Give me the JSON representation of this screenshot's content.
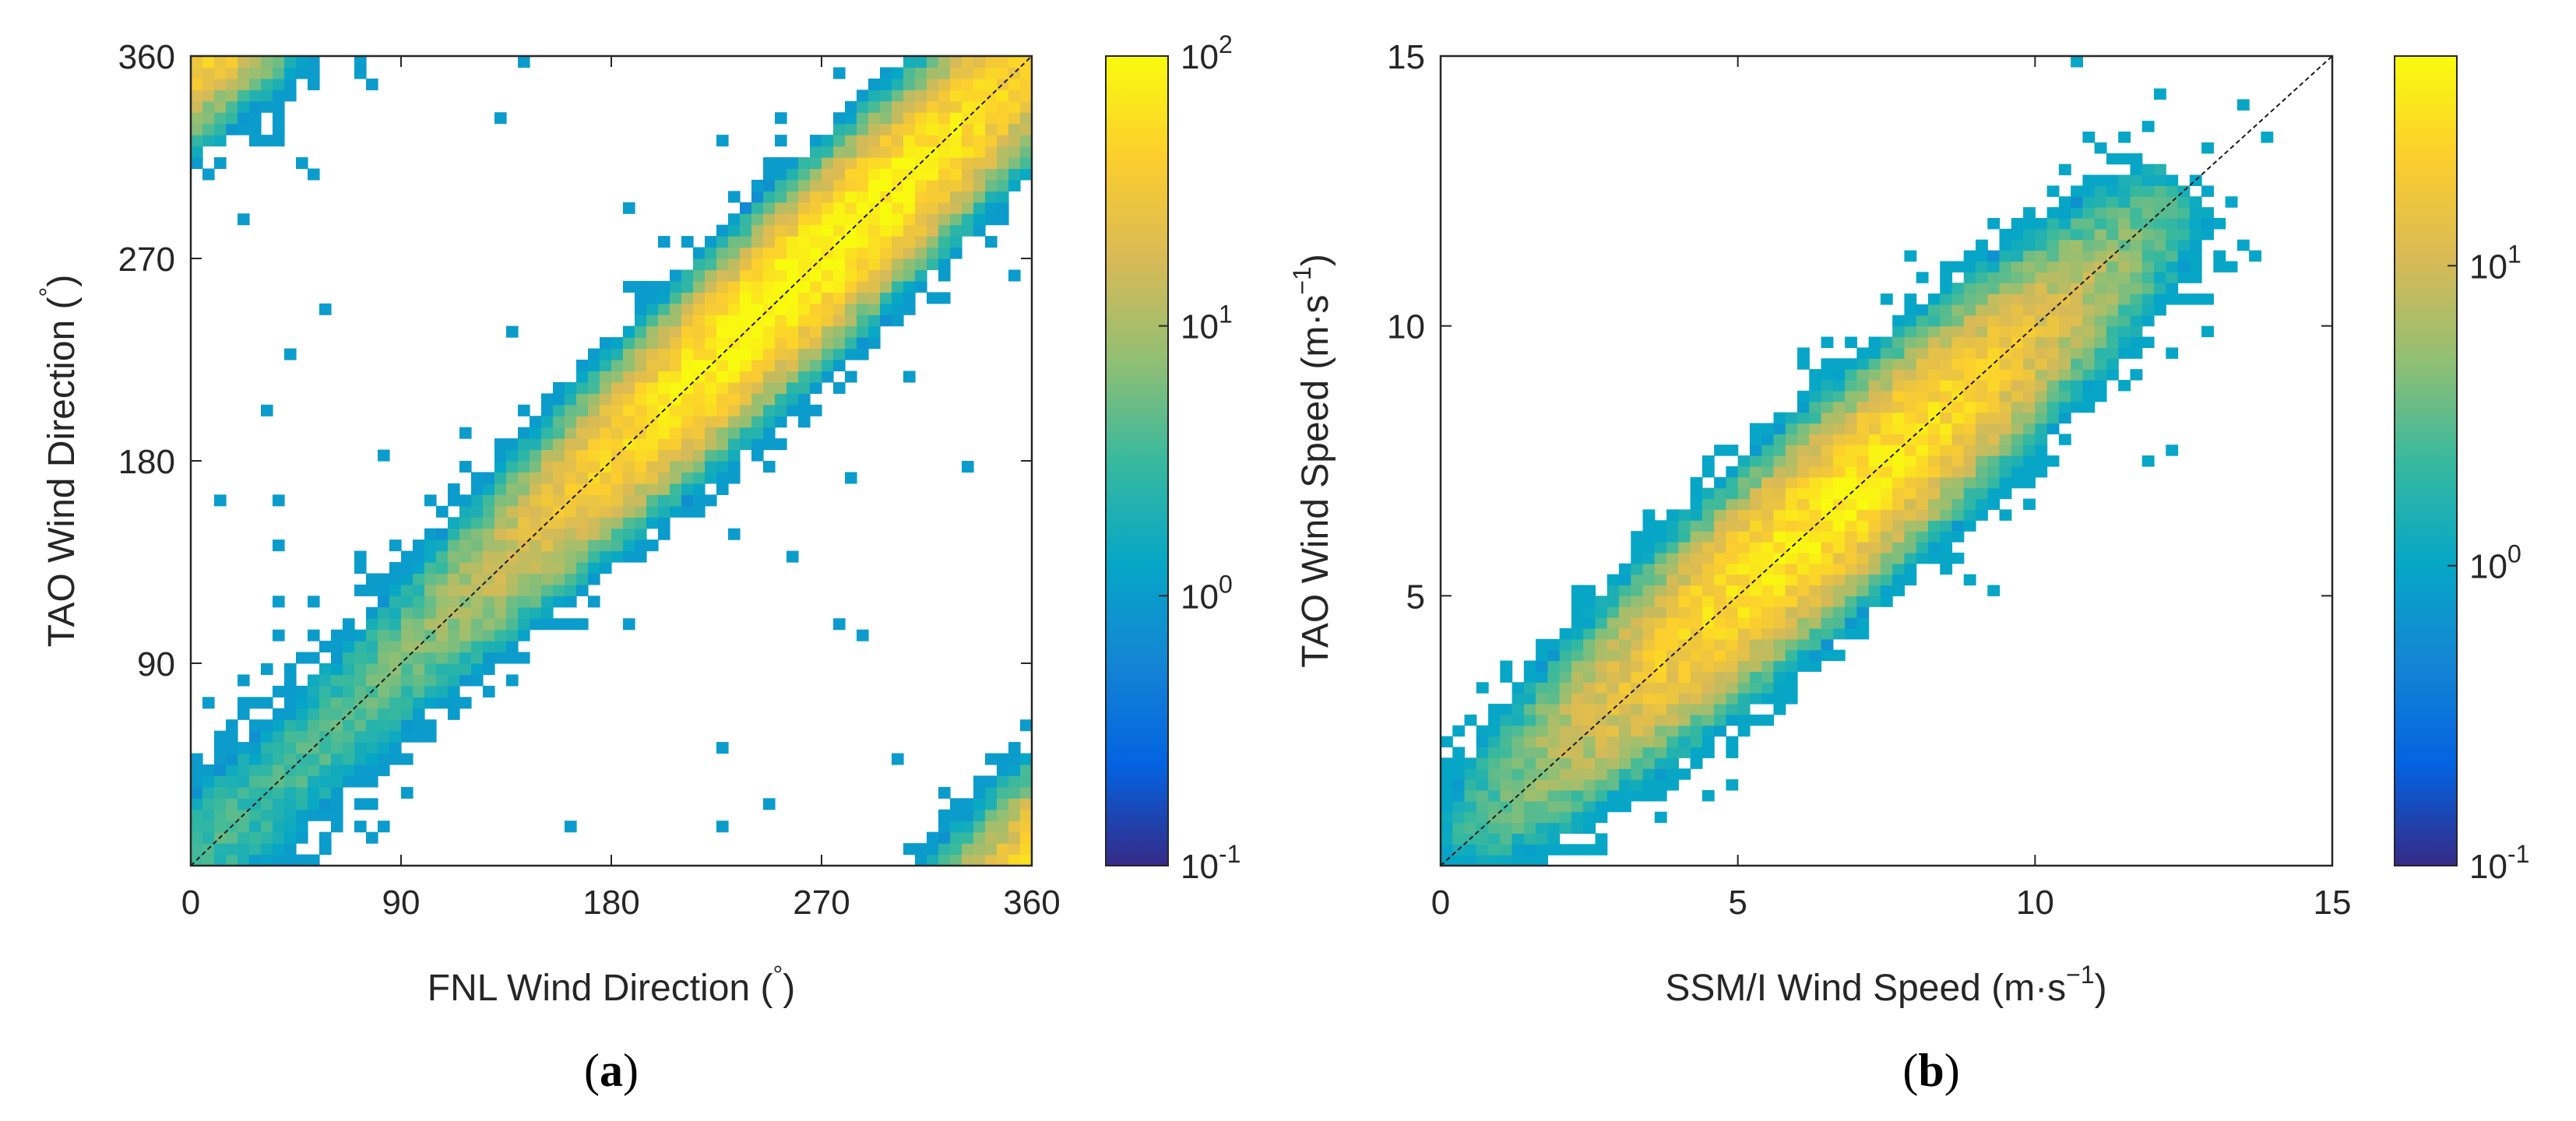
{
  "chart_data": [
    {
      "type": "heatmap",
      "panel_label": "a",
      "title": "",
      "xlabel": "FNL Wind Direction (°)",
      "ylabel": "TAO Wind Direction (°)",
      "xlabel_text": "FNL Wind Direction (",
      "ylabel_text": "TAO Wind Direction (",
      "label_unit_close": ")",
      "degree_symbol": "°",
      "xlim": [
        0,
        360
      ],
      "ylim": [
        0,
        360
      ],
      "xticks": [
        0,
        90,
        180,
        270,
        360
      ],
      "yticks": [
        90,
        180,
        270,
        360
      ],
      "bin_size": 5,
      "density": {
        "ridge_peak_count": 100,
        "ridge_spread": 18,
        "high_density_range": [
          200,
          330
        ],
        "corner_wrap_clusters": true
      },
      "reference_line": "y = x",
      "colorbar": {
        "scale": "log",
        "range": [
          0.1,
          100
        ],
        "ticks": [
          {
            "value": 0.1,
            "base": "10",
            "exp": "-1"
          },
          {
            "value": 1,
            "base": "10",
            "exp": "0"
          },
          {
            "value": 10,
            "base": "10",
            "exp": "1"
          },
          {
            "value": 100,
            "base": "10",
            "exp": "2"
          }
        ],
        "colormap": "parula"
      }
    },
    {
      "type": "heatmap",
      "panel_label": "b",
      "title": "",
      "xlabel": "SSM/I Wind Speed (m·s⁻¹)",
      "ylabel": "TAO Wind Speed (m·s⁻¹)",
      "xlabel_text": "SSM/I Wind Speed (m·s",
      "ylabel_text": "TAO Wind Speed (m·s",
      "label_unit_exp": "−1",
      "label_unit_close": ")",
      "xlim": [
        0,
        15
      ],
      "ylim": [
        0,
        15
      ],
      "xticks": [
        0,
        5,
        10,
        15
      ],
      "yticks": [
        5,
        10,
        15
      ],
      "bin_size": 0.2,
      "density": {
        "ridge_peak_count": 40,
        "ridge_center": 6.5,
        "ridge_spread": 0.9
      },
      "reference_line": "y = x",
      "colorbar": {
        "scale": "log",
        "range": [
          0.1,
          50
        ],
        "ticks": [
          {
            "value": 0.1,
            "base": "10",
            "exp": "-1"
          },
          {
            "value": 1,
            "base": "10",
            "exp": "0"
          },
          {
            "value": 10,
            "base": "10",
            "exp": "1"
          }
        ],
        "colormap": "parula"
      }
    }
  ],
  "colors": {
    "axis": "#262626",
    "refline": "#1a1a1a",
    "background": "#ffffff"
  },
  "parula_stops": [
    "#352a87",
    "#0363e1",
    "#1485d4",
    "#06a7c6",
    "#38b99e",
    "#92bf73",
    "#d9ba56",
    "#fcce2e",
    "#f9fb0e"
  ]
}
